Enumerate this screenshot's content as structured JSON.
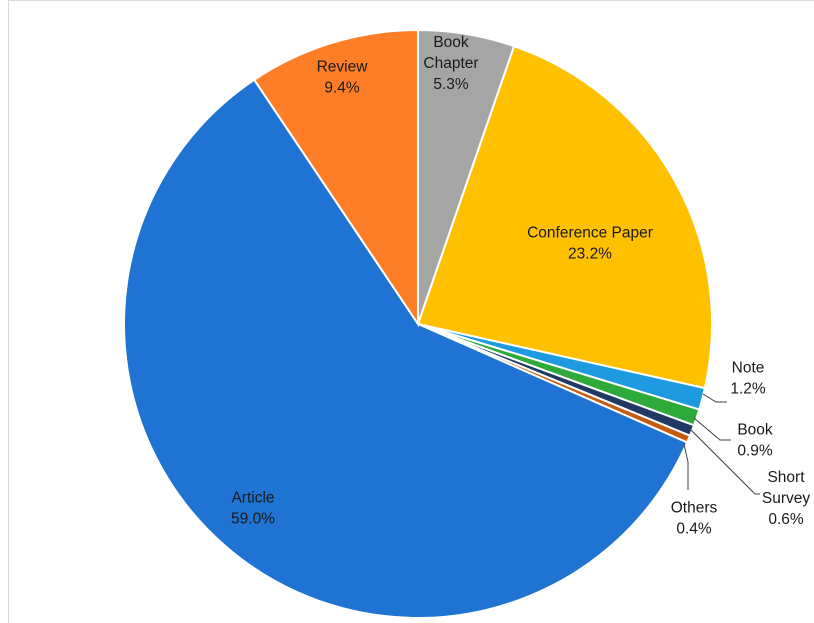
{
  "chart_data": {
    "type": "pie",
    "title": "",
    "start_angle_deg": 0,
    "direction": "clockwise",
    "slices": [
      {
        "name": "Book Chapter",
        "lines": [
          "Book",
          "Chapter"
        ],
        "value": 5.3,
        "percent_label": "5.3%",
        "color": "#a5a5a5"
      },
      {
        "name": "Conference Paper",
        "lines": [
          "Conference Paper"
        ],
        "value": 23.2,
        "percent_label": "23.2%",
        "color": "#ffc000"
      },
      {
        "name": "Note",
        "lines": [
          "Note"
        ],
        "value": 1.2,
        "percent_label": "1.2%",
        "color": "#1e9be0"
      },
      {
        "name": "Book",
        "lines": [
          "Book"
        ],
        "value": 0.9,
        "percent_label": "0.9%",
        "color": "#2eaa3a"
      },
      {
        "name": "Short Survey",
        "lines": [
          "Short",
          "Survey"
        ],
        "value": 0.6,
        "percent_label": "0.6%",
        "color": "#1f3864"
      },
      {
        "name": "Others",
        "lines": [
          "Others"
        ],
        "value": 0.4,
        "percent_label": "0.4%",
        "color": "#c55a11"
      },
      {
        "name": "Article",
        "lines": [
          "Article"
        ],
        "value": 59.0,
        "percent_label": "59.0%",
        "color": "#1f73d2"
      },
      {
        "name": "Review",
        "lines": [
          "Review"
        ],
        "value": 9.4,
        "percent_label": "9.4%",
        "color": "#fd7e27"
      }
    ],
    "legend": "none",
    "data_labels": "on-slice and callouts with leader lines"
  }
}
